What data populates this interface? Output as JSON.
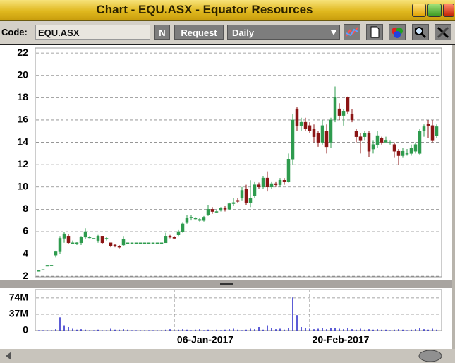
{
  "window": {
    "title": "Chart - EQU.ASX - Equator Resources"
  },
  "toolbar": {
    "code_label": "Code:",
    "code_value": "EQU.ASX",
    "n_button": "N",
    "request_button": "Request",
    "interval": "Daily"
  },
  "chart_data": [
    {
      "type": "candlestick",
      "open": [
        2.5,
        2.6,
        2.9,
        3.0,
        3.9,
        4.2,
        5.4,
        5.6,
        5.0,
        5.0,
        5.0,
        5.5,
        5.5,
        5.4,
        5.2,
        5.6,
        5.4,
        5.0,
        4.8,
        4.7,
        4.8,
        5.0,
        5.0,
        5.0,
        5.0,
        5.0,
        5.0,
        5.0,
        5.0,
        5.0,
        5.0,
        5.6,
        5.5,
        5.7,
        6.0,
        6.8,
        7.3,
        7.2,
        7.0,
        7.0,
        7.5,
        8.0,
        7.8,
        7.9,
        8.1,
        8.0,
        8.5,
        8.8,
        9.0,
        9.8,
        8.6,
        9.2,
        10.2,
        10.0,
        10.8,
        10.0,
        10.3,
        10.2,
        10.6,
        10.5,
        12.5,
        17.0,
        15.5,
        15.8,
        15.5,
        15.2,
        14.8,
        14.0,
        15.0,
        14.0,
        16.0,
        17.0,
        16.4,
        18.0,
        16.5,
        15.0,
        14.5,
        14.5,
        14.8,
        13.4,
        13.8,
        14.4,
        14.0,
        14.0,
        13.8,
        13.2,
        12.8,
        13.0,
        13.0,
        13.2,
        13.0,
        15.0,
        15.6,
        15.5,
        14.6
      ],
      "high": [
        2.5,
        2.6,
        3.0,
        3.0,
        4.3,
        5.6,
        6.0,
        5.8,
        5.2,
        5.1,
        5.6,
        6.3,
        5.6,
        5.4,
        5.7,
        5.6,
        5.5,
        5.0,
        4.9,
        4.8,
        5.6,
        5.0,
        5.0,
        5.0,
        5.0,
        5.0,
        5.0,
        5.0,
        5.0,
        5.0,
        5.9,
        5.7,
        5.6,
        6.2,
        6.8,
        7.5,
        7.5,
        7.3,
        7.2,
        7.4,
        8.4,
        8.2,
        7.9,
        8.2,
        8.3,
        8.6,
        9.0,
        9.0,
        10.0,
        10.2,
        10.6,
        10.5,
        10.4,
        11.0,
        11.4,
        10.5,
        10.5,
        10.8,
        10.8,
        13.0,
        16.5,
        17.2,
        16.2,
        16.2,
        15.8,
        15.6,
        15.0,
        16.0,
        15.6,
        16.2,
        19.0,
        17.5,
        17.0,
        18.1,
        17.0,
        15.2,
        14.8,
        15.0,
        15.0,
        14.2,
        15.0,
        14.5,
        14.5,
        14.2,
        14.0,
        13.4,
        13.5,
        13.4,
        13.8,
        14.0,
        15.2,
        15.6,
        16.0,
        16.0,
        15.6
      ],
      "low": [
        2.5,
        2.6,
        2.9,
        3.0,
        3.7,
        4.0,
        5.0,
        4.9,
        5.0,
        4.8,
        4.8,
        5.3,
        5.4,
        5.4,
        5.0,
        4.9,
        5.2,
        4.6,
        4.6,
        4.5,
        4.7,
        5.0,
        5.0,
        5.0,
        5.0,
        5.0,
        5.0,
        5.0,
        5.0,
        5.0,
        5.0,
        5.4,
        5.3,
        5.6,
        5.9,
        6.7,
        7.0,
        7.1,
        6.9,
        6.9,
        7.4,
        7.6,
        7.7,
        7.8,
        7.8,
        7.9,
        8.3,
        8.6,
        8.8,
        8.4,
        8.2,
        9.0,
        9.8,
        9.8,
        9.6,
        9.8,
        10.0,
        10.0,
        10.2,
        10.4,
        12.0,
        15.0,
        15.0,
        15.0,
        14.8,
        14.0,
        13.6,
        13.8,
        13.0,
        13.5,
        15.8,
        16.0,
        15.5,
        16.5,
        15.8,
        14.0,
        13.0,
        14.2,
        12.7,
        13.0,
        13.5,
        13.8,
        14.0,
        13.8,
        12.6,
        12.0,
        12.6,
        12.8,
        12.8,
        13.0,
        12.9,
        14.5,
        14.4,
        14.0,
        14.4
      ],
      "close": [
        2.5,
        2.6,
        3.0,
        3.0,
        4.2,
        5.4,
        5.8,
        5.0,
        5.0,
        5.0,
        5.5,
        6.0,
        5.5,
        5.4,
        5.6,
        5.0,
        5.4,
        4.7,
        4.7,
        4.6,
        5.3,
        5.0,
        5.0,
        5.0,
        5.0,
        5.0,
        5.0,
        5.0,
        5.0,
        5.0,
        5.6,
        5.5,
        5.4,
        6.0,
        6.7,
        7.2,
        7.3,
        7.2,
        7.1,
        7.3,
        8.0,
        7.8,
        7.8,
        8.1,
        8.0,
        8.5,
        8.6,
        8.7,
        9.7,
        8.6,
        9.0,
        10.2,
        10.0,
        10.8,
        10.0,
        10.3,
        10.2,
        10.6,
        10.5,
        12.5,
        16.0,
        15.5,
        15.8,
        15.2,
        15.0,
        14.5,
        14.0,
        15.5,
        13.6,
        16.0,
        18.0,
        16.4,
        16.8,
        16.8,
        16.0,
        14.5,
        14.2,
        14.8,
        13.2,
        13.8,
        14.6,
        14.0,
        14.2,
        14.0,
        13.2,
        12.8,
        13.2,
        13.0,
        13.5,
        13.8,
        15.0,
        15.4,
        15.5,
        14.2,
        15.4
      ],
      "up_color": "#2e9b4e",
      "down_color": "#8b1414",
      "ylim": [
        1.95,
        22.45
      ],
      "yticks": [
        2,
        4,
        6,
        8,
        10,
        12,
        14,
        16,
        18,
        20,
        22
      ],
      "grid": true
    },
    {
      "type": "bar",
      "categories": [
        null,
        null,
        null,
        null,
        null,
        null,
        null,
        null,
        null,
        null,
        null,
        null,
        null,
        null,
        null,
        null,
        null,
        null,
        null,
        null,
        null,
        null,
        null,
        null,
        null,
        null,
        null,
        null,
        null,
        null,
        null,
        null,
        "06-Jan-2017",
        null,
        null,
        null,
        null,
        null,
        null,
        null,
        null,
        null,
        null,
        null,
        null,
        null,
        null,
        null,
        null,
        null,
        null,
        null,
        null,
        null,
        null,
        null,
        null,
        null,
        null,
        null,
        null,
        null,
        null,
        null,
        "20-Feb-2017",
        null,
        null,
        null,
        null,
        null,
        null,
        null,
        null,
        null,
        null,
        null,
        null,
        null,
        null,
        null,
        null,
        null,
        null,
        null,
        null,
        null,
        null,
        null,
        null,
        null,
        null,
        null,
        null,
        null,
        null
      ],
      "values": [
        1,
        1,
        1,
        1,
        3,
        30,
        12,
        8,
        4,
        2,
        3,
        2,
        1,
        1,
        2,
        1,
        1,
        4,
        2,
        2,
        3,
        2,
        1,
        1,
        1,
        1,
        1,
        1,
        1,
        1,
        2,
        3,
        1,
        2,
        3,
        2,
        1,
        2,
        3,
        1,
        2,
        1,
        2,
        1,
        2,
        3,
        4,
        2,
        1,
        2,
        4,
        3,
        8,
        2,
        12,
        6,
        3,
        4,
        2,
        5,
        75,
        35,
        8,
        5,
        4,
        3,
        4,
        6,
        3,
        5,
        6,
        4,
        3,
        5,
        3,
        2,
        4,
        2,
        3,
        2,
        3,
        2,
        2,
        1,
        2,
        3,
        2,
        1,
        2,
        3,
        6,
        3,
        2,
        4,
        2
      ],
      "color": "#2626c8",
      "ylim": [
        0,
        93
      ],
      "yticks": [
        0,
        {
          "value": 37,
          "label": "37M"
        },
        {
          "value": 74,
          "label": "74M"
        }
      ],
      "grid": true
    }
  ]
}
